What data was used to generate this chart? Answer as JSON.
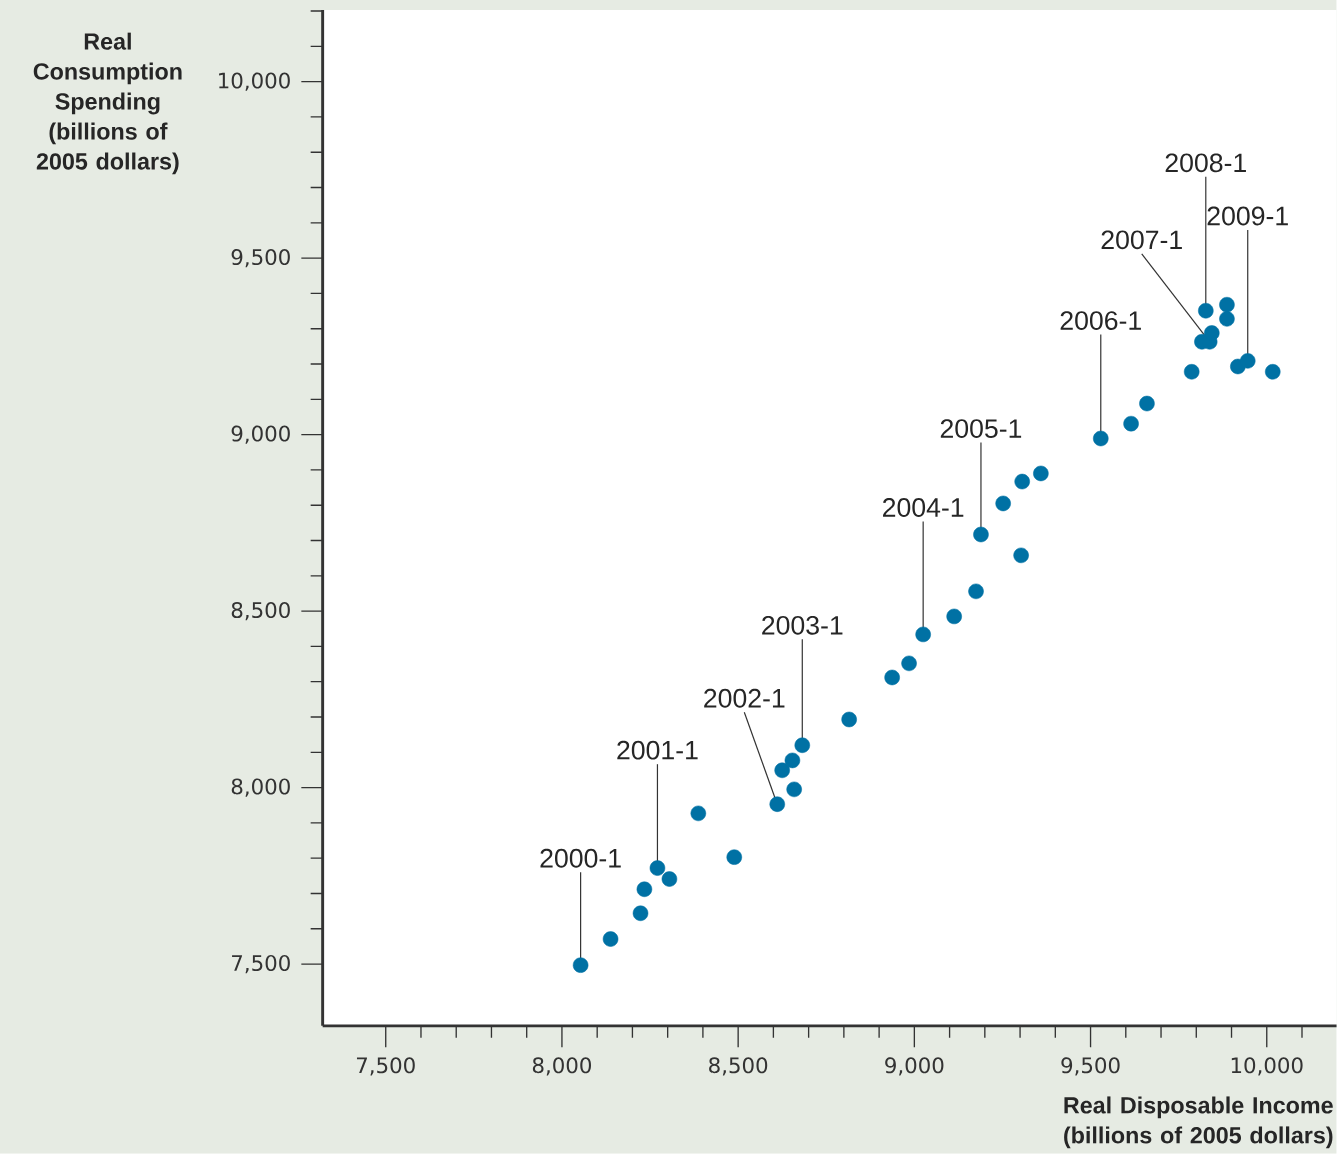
{
  "chart_data": {
    "type": "scatter",
    "xlabel": "Real Disposable Income (billions of 2005 dollars)",
    "ylabel": "Real Consumption Spending (billions of 2005 dollars)",
    "x": [
      8053,
      8138,
      8223,
      8234,
      8271,
      8305,
      8387,
      8489,
      8611,
      8625,
      8654,
      8659,
      8682,
      8815,
      8937,
      8985,
      9025,
      9113,
      9175,
      9189,
      9252,
      9303,
      9306,
      9359,
      9529,
      9615,
      9660,
      9787,
      9816,
      9838,
      9844,
      9827,
      9887,
      9887,
      9918,
      9946,
      10017
    ],
    "values": [
      7497,
      7571,
      7644,
      7712,
      7772,
      7741,
      7927,
      7803,
      7953,
      8049,
      8077,
      7995,
      8120,
      8193,
      8312,
      8352,
      8434,
      8485,
      8556,
      8717,
      8805,
      8658,
      8867,
      8890,
      8989,
      9031,
      9088,
      9178,
      9263,
      9263,
      9288,
      9351,
      9368,
      9328,
      9193,
      9209,
      9178
    ],
    "color": "#0071a4",
    "marker": "circle",
    "xlim": [
      7321,
      10198
    ],
    "ylim": [
      7325,
      10203
    ],
    "xticks": [
      {
        "value": 7500,
        "label": "7,500"
      },
      {
        "value": 7600,
        "label": null
      },
      {
        "value": 7700,
        "label": null
      },
      {
        "value": 7800,
        "label": null
      },
      {
        "value": 7900,
        "label": null
      },
      {
        "value": 8000,
        "label": "8,000"
      },
      {
        "value": 8100,
        "label": null
      },
      {
        "value": 8200,
        "label": null
      },
      {
        "value": 8300,
        "label": null
      },
      {
        "value": 8400,
        "label": null
      },
      {
        "value": 8500,
        "label": "8,500"
      },
      {
        "value": 8600,
        "label": null
      },
      {
        "value": 8700,
        "label": null
      },
      {
        "value": 8800,
        "label": null
      },
      {
        "value": 8900,
        "label": null
      },
      {
        "value": 9000,
        "label": "9,000"
      },
      {
        "value": 9100,
        "label": null
      },
      {
        "value": 9200,
        "label": null
      },
      {
        "value": 9300,
        "label": null
      },
      {
        "value": 9400,
        "label": null
      },
      {
        "value": 9500,
        "label": "9,500"
      },
      {
        "value": 9600,
        "label": null
      },
      {
        "value": 9700,
        "label": null
      },
      {
        "value": 9800,
        "label": null
      },
      {
        "value": 9900,
        "label": null
      },
      {
        "value": 10000,
        "label": "10,000"
      },
      {
        "value": 10100,
        "label": null
      }
    ],
    "yticks": [
      {
        "value": 7500,
        "label": "7,500"
      },
      {
        "value": 7600,
        "label": null
      },
      {
        "value": 7700,
        "label": null
      },
      {
        "value": 7800,
        "label": null
      },
      {
        "value": 7900,
        "label": null
      },
      {
        "value": 8000,
        "label": "8,000"
      },
      {
        "value": 8100,
        "label": null
      },
      {
        "value": 8200,
        "label": null
      },
      {
        "value": 8300,
        "label": null
      },
      {
        "value": 8400,
        "label": null
      },
      {
        "value": 8500,
        "label": "8,500"
      },
      {
        "value": 8600,
        "label": null
      },
      {
        "value": 8700,
        "label": null
      },
      {
        "value": 8800,
        "label": null
      },
      {
        "value": 8900,
        "label": null
      },
      {
        "value": 9000,
        "label": "9,000"
      },
      {
        "value": 9100,
        "label": null
      },
      {
        "value": 9200,
        "label": null
      },
      {
        "value": 9300,
        "label": null
      },
      {
        "value": 9400,
        "label": null
      },
      {
        "value": 9500,
        "label": "9,500"
      },
      {
        "value": 9600,
        "label": null
      },
      {
        "value": 9700,
        "label": null
      },
      {
        "value": 9800,
        "label": null
      },
      {
        "value": 9900,
        "label": null
      },
      {
        "value": 10000,
        "label": "10,000"
      },
      {
        "value": 10100,
        "label": null
      },
      {
        "value": 10200,
        "label": null
      }
    ],
    "annotations": [
      {
        "text": "2000-1",
        "x": 8053,
        "y": 7497
      },
      {
        "text": "2001-1",
        "x": 8271,
        "y": 7772
      },
      {
        "text": "2002-1",
        "x": 8611,
        "y": 7953
      },
      {
        "text": "2003-1",
        "x": 8682,
        "y": 8120
      },
      {
        "text": "2004-1",
        "x": 9025,
        "y": 8434
      },
      {
        "text": "2005-1",
        "x": 9189,
        "y": 8717
      },
      {
        "text": "2006-1",
        "x": 9529,
        "y": 8989
      },
      {
        "text": "2007-1",
        "x": 9838,
        "y": 9263
      },
      {
        "text": "2008-1",
        "x": 9827,
        "y": 9351
      },
      {
        "text": "2009-1",
        "x": 9946,
        "y": 9209
      }
    ]
  }
}
